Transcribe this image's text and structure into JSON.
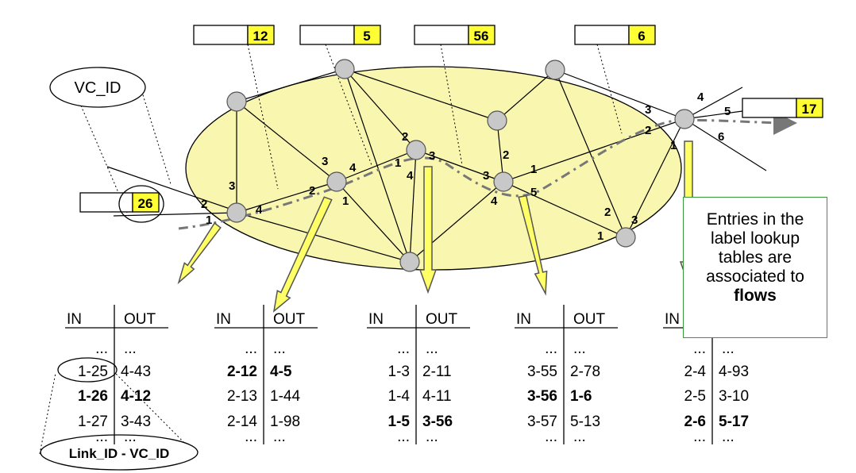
{
  "labels": {
    "vc_id": "VC_ID",
    "link_vc_id": "Link_ID - VC_ID",
    "in": "IN",
    "out": "OUT",
    "dots": "..."
  },
  "top_labels": [
    "12",
    "5",
    "56",
    "6"
  ],
  "ingress_label": "26",
  "egress_label": "17",
  "callout": {
    "line1": "Entries in the",
    "line2": "label lookup",
    "line3": "tables are",
    "line4": "associated to",
    "line5": "flows"
  },
  "ports": {
    "n1": [
      "2",
      "3",
      "1",
      "4"
    ],
    "n2": [
      "3",
      "4",
      "2",
      "1"
    ],
    "n3": [
      "2",
      "1",
      "3",
      "4"
    ],
    "n4": [
      "2",
      "3",
      "1",
      "4",
      "5"
    ],
    "n5": [
      "3",
      "2",
      "1",
      "4",
      "5",
      "6"
    ],
    "n6": [
      "2",
      "3",
      "1"
    ]
  },
  "tables": [
    {
      "rows": [
        [
          "1-25",
          "4-43",
          false
        ],
        [
          "1-26",
          "4-12",
          true
        ],
        [
          "1-27",
          "3-43",
          false
        ]
      ]
    },
    {
      "rows": [
        [
          "2-12",
          "4-5",
          true
        ],
        [
          "2-13",
          "1-44",
          false
        ],
        [
          "2-14",
          "1-98",
          false
        ]
      ]
    },
    {
      "rows": [
        [
          "1-3",
          "2-11",
          false
        ],
        [
          "1-4",
          "4-11",
          false
        ],
        [
          "1-5",
          "3-56",
          true
        ]
      ]
    },
    {
      "rows": [
        [
          "3-55",
          "2-78",
          false
        ],
        [
          "3-56",
          "1-6",
          true
        ],
        [
          "3-57",
          "5-13",
          false
        ]
      ]
    },
    {
      "rows": [
        [
          "2-4",
          "4-93",
          false
        ],
        [
          "2-5",
          "3-10",
          false
        ],
        [
          "2-6",
          "5-17",
          true
        ]
      ]
    }
  ],
  "colors": {
    "cloud_fill": "#f9f6b0",
    "label_fill": "#ffff33",
    "arrow_fill": "#ffff66",
    "node_fill": "#c8c8c8",
    "path_stroke": "#777777",
    "callout_border": "#3a9a3a"
  }
}
